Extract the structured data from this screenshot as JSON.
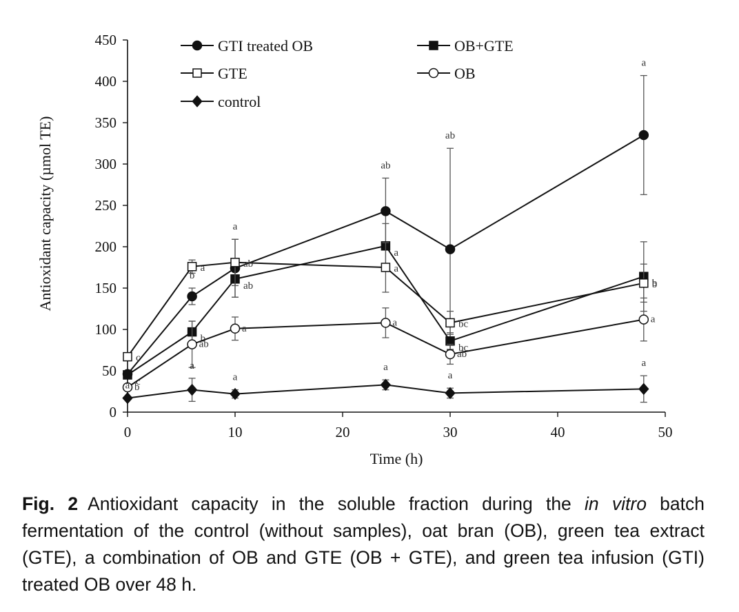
{
  "chart_data": {
    "type": "line",
    "title": "",
    "xlabel": "Time (h)",
    "ylabel": "Antioxidant capacity (µmol TE)",
    "xlim": [
      0,
      50
    ],
    "ylim": [
      0,
      450
    ],
    "xticks": [
      "0",
      "10",
      "20",
      "30",
      "40",
      "50"
    ],
    "yticks": [
      "0",
      "50",
      "100",
      "150",
      "200",
      "250",
      "300",
      "350",
      "400",
      "450"
    ],
    "grid": false,
    "legend_position": "top",
    "series": [
      {
        "name": "GTI treated OB",
        "marker": "filled-circle",
        "x": [
          0,
          6,
          10,
          24,
          30,
          48
        ],
        "y": [
          46,
          140,
          174,
          243,
          197,
          335
        ],
        "error": [
          null,
          10,
          35,
          40,
          122,
          72
        ],
        "labels": [
          "",
          "b",
          "a",
          "ab",
          "ab",
          "a"
        ]
      },
      {
        "name": "OB+GTE",
        "marker": "filled-square",
        "x": [
          0,
          6,
          10,
          24,
          30,
          48
        ],
        "y": [
          45,
          97,
          161,
          201,
          86,
          164
        ],
        "error": [
          null,
          13,
          22,
          27,
          10,
          42
        ],
        "labels": [
          "c",
          "b",
          "ab",
          "a",
          "bc",
          "b"
        ]
      },
      {
        "name": "GTE",
        "marker": "open-square",
        "x": [
          0,
          6,
          10,
          24,
          30,
          48
        ],
        "y": [
          67,
          176,
          181,
          175,
          108,
          156
        ],
        "error": [
          null,
          8,
          28,
          30,
          14,
          23
        ],
        "labels": [
          "c",
          "a",
          "ab",
          "a",
          "bc",
          "b"
        ]
      },
      {
        "name": "OB",
        "marker": "open-circle",
        "x": [
          0,
          6,
          10,
          24,
          30,
          48
        ],
        "y": [
          30,
          82,
          101,
          108,
          70,
          112
        ],
        "error": [
          null,
          28,
          14,
          18,
          12,
          26
        ],
        "labels": [
          "b",
          "ab",
          "a",
          "a",
          "ab",
          "a"
        ]
      },
      {
        "name": "control",
        "marker": "filled-diamond",
        "x": [
          0,
          6,
          10,
          24,
          30,
          48
        ],
        "y": [
          17,
          27,
          22,
          33,
          23,
          28
        ],
        "error": [
          null,
          14,
          5,
          6,
          6,
          16
        ],
        "labels": [
          "a",
          "a",
          "a",
          "a",
          "a",
          "a"
        ]
      }
    ]
  },
  "caption": {
    "fig_num": "Fig. 2",
    "text_before": "Antioxidant capacity in the soluble fraction during the ",
    "italic": "in vitro",
    "text_after": " batch fermentation of the control (without samples), oat bran (OB), green tea extract (GTE), a combination of OB and GTE (OB + GTE), and green tea infusion (GTI) treated OB over 48 h."
  }
}
